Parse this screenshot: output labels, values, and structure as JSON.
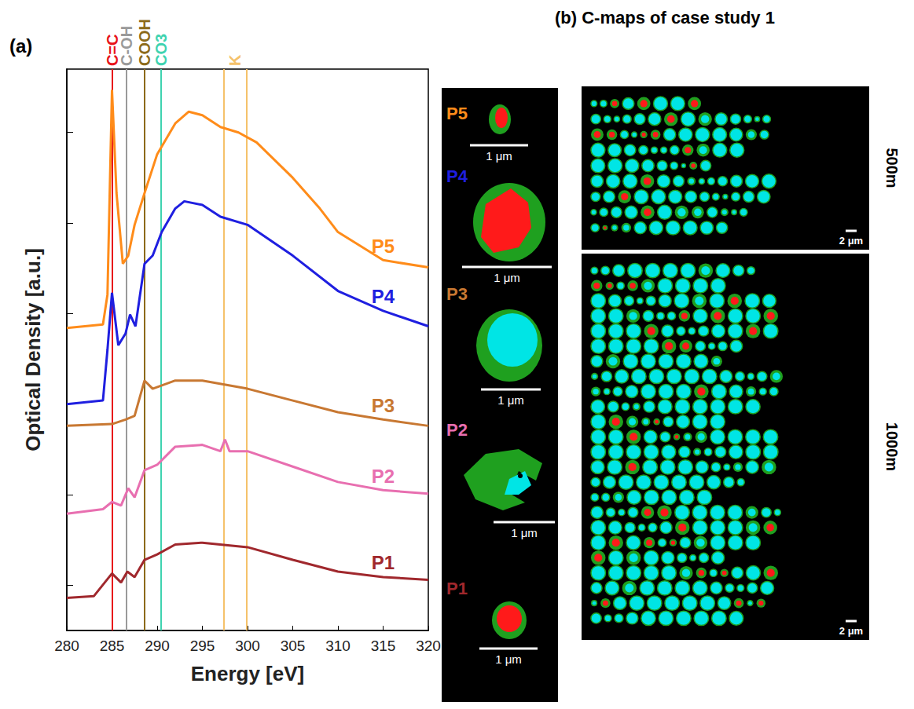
{
  "chart_data": {
    "type": "line",
    "panel": "(a)",
    "x_label": "Energy [eV]",
    "y_label": "Optical Density [a.u.]",
    "xlim": [
      280,
      320
    ],
    "xticks": [
      280,
      285,
      290,
      295,
      300,
      305,
      310,
      315,
      320
    ],
    "ylim": [
      0.5,
      6.7
    ],
    "yticks": [
      1,
      2,
      3,
      4,
      5,
      6
    ],
    "tick_labels": "x",
    "grid": false,
    "annotations": [
      {
        "text": "C=C",
        "x": [
          285.0
        ],
        "color": "#e8141b"
      },
      {
        "text": "C-OH",
        "x": [
          286.6
        ],
        "color": "#9a9a9a"
      },
      {
        "text": "COOH",
        "x": [
          288.6
        ],
        "color": "#8c6a1a"
      },
      {
        "text": "CO3",
        "x": [
          290.4
        ],
        "color": "#3fd3b0"
      },
      {
        "text": "K",
        "x": [
          297.4,
          299.9
        ],
        "color": "#f5c26b"
      }
    ],
    "series": [
      {
        "name": "P5",
        "color": "#ff8c1a",
        "x": [
          280,
          284,
          284.5,
          285,
          285.5,
          286.2,
          286.8,
          287.5,
          288.6,
          290,
          292,
          293.5,
          295,
          297,
          299,
          301,
          305,
          308,
          310,
          315,
          320
        ],
        "values": [
          3.84,
          3.88,
          4.21,
          6.47,
          5.33,
          4.55,
          4.64,
          4.98,
          5.33,
          5.76,
          6.1,
          6.23,
          6.19,
          6.06,
          6.0,
          5.89,
          5.5,
          5.16,
          4.9,
          4.59,
          4.51
        ]
      },
      {
        "name": "P4",
        "color": "#1f1fe0",
        "x": [
          280,
          284,
          284.5,
          285,
          285.7,
          286.5,
          287,
          287.6,
          288.6,
          289.5,
          290.5,
          292,
          293,
          295,
          297,
          300,
          305,
          310,
          315,
          320
        ],
        "values": [
          3.0,
          3.04,
          3.6,
          4.23,
          3.65,
          3.78,
          3.99,
          3.86,
          4.55,
          4.64,
          4.9,
          5.16,
          5.24,
          5.2,
          5.07,
          4.98,
          4.64,
          4.25,
          4.03,
          3.86
        ]
      },
      {
        "name": "P3",
        "color": "#c87832",
        "x": [
          280,
          285,
          286.5,
          287.5,
          288.6,
          289.5,
          292,
          295,
          300,
          305,
          310,
          315,
          320
        ],
        "values": [
          2.76,
          2.78,
          2.83,
          2.87,
          3.26,
          3.17,
          3.26,
          3.26,
          3.17,
          3.04,
          2.91,
          2.83,
          2.76
        ]
      },
      {
        "name": "P2",
        "color": "#e86fb0",
        "x": [
          280,
          284,
          285,
          286,
          286.8,
          287.5,
          288.6,
          290,
          292,
          295,
          297,
          297.5,
          298,
          300,
          305,
          310,
          315,
          320
        ],
        "values": [
          1.79,
          1.84,
          1.92,
          1.88,
          2.07,
          1.97,
          2.27,
          2.33,
          2.53,
          2.55,
          2.48,
          2.61,
          2.48,
          2.48,
          2.31,
          2.14,
          2.05,
          2.01
        ]
      },
      {
        "name": "P1",
        "color": "#a0282d",
        "x": [
          280,
          283,
          285,
          286,
          286.7,
          287.5,
          288.6,
          290,
          292,
          295,
          300,
          305,
          310,
          315,
          320
        ],
        "values": [
          0.86,
          0.88,
          1.13,
          1.03,
          1.15,
          1.09,
          1.28,
          1.34,
          1.45,
          1.47,
          1.42,
          1.28,
          1.15,
          1.09,
          1.06
        ]
      }
    ]
  },
  "particle_maps": {
    "items": [
      {
        "label": "P5",
        "color": "#ff8c1a",
        "scale": "1 μm"
      },
      {
        "label": "P4",
        "color": "#1f1fe0",
        "scale": "1 μm"
      },
      {
        "label": "P3",
        "color": "#c87832",
        "scale": "1 μm"
      },
      {
        "label": "P2",
        "color": "#e86fb0",
        "scale": "1 μm"
      },
      {
        "label": "P1",
        "color": "#a0282d",
        "scale": "1 μm"
      }
    ]
  },
  "c_maps": {
    "title": "(b) C-maps of case study 1",
    "panels": [
      {
        "label": "500m",
        "scale": "2 μm"
      },
      {
        "label": "1000m",
        "scale": "2 μm"
      }
    ]
  }
}
